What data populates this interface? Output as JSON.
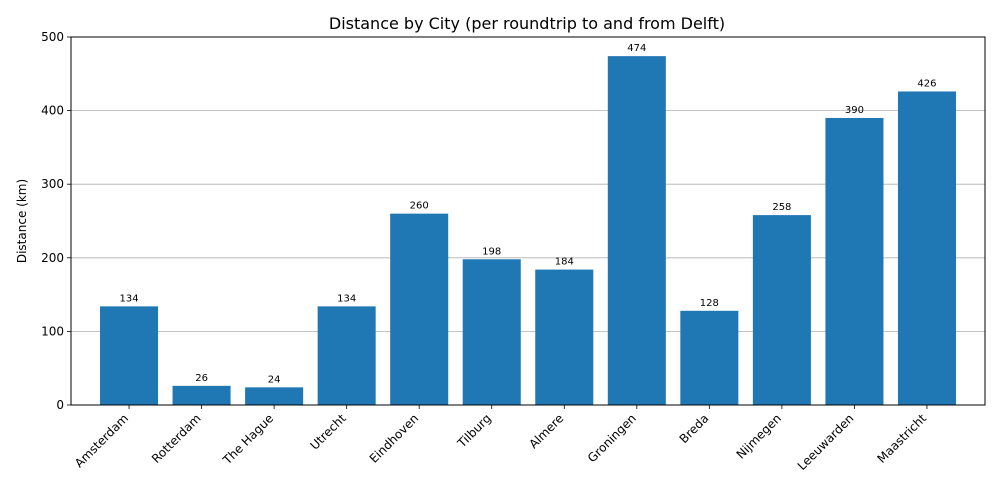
{
  "chart_data": {
    "type": "bar",
    "title": "Distance by City (per roundtrip to and from Delft)",
    "xlabel": "",
    "ylabel": "Distance (km)",
    "categories": [
      "Amsterdam",
      "Rotterdam",
      "The Hague",
      "Utrecht",
      "Eindhoven",
      "Tilburg",
      "Almere",
      "Groningen",
      "Breda",
      "Nijmegen",
      "Leeuwarden",
      "Maastricht"
    ],
    "values": [
      134,
      26,
      24,
      134,
      260,
      198,
      184,
      474,
      128,
      258,
      390,
      426
    ],
    "ylim": [
      0,
      500
    ],
    "yticks": [
      0,
      100,
      200,
      300,
      400,
      500
    ],
    "grid": "y-axis horizontal lines",
    "bar_color": "#1f77b4",
    "data_labels": true
  }
}
